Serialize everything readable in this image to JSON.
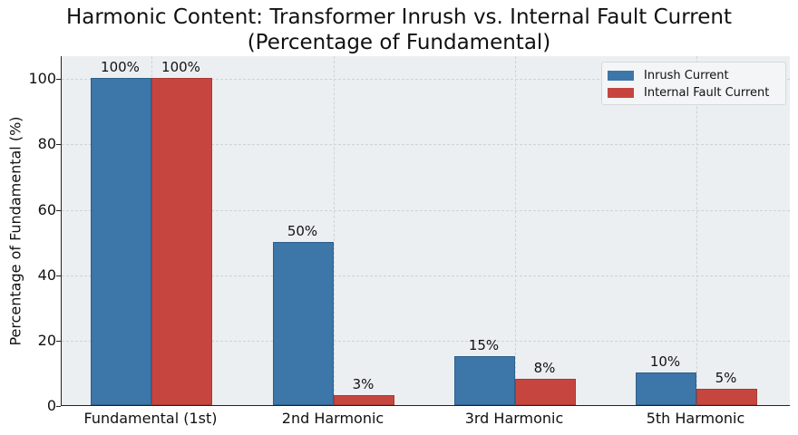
{
  "chart_data": {
    "type": "bar",
    "title": "Harmonic Content: Transformer Inrush vs. Internal Fault Current",
    "subtitle": "(Percentage of Fundamental)",
    "xlabel": "",
    "ylabel": "Percentage of Fundamental (%)",
    "ylim": [
      0,
      107
    ],
    "yticks": [
      0,
      20,
      40,
      60,
      80,
      100
    ],
    "grid": true,
    "legend_position": "upper right",
    "categories": [
      "Fundamental (1st)",
      "2nd Harmonic",
      "3rd Harmonic",
      "5th Harmonic"
    ],
    "series": [
      {
        "name": "Inrush Current",
        "color": "#3d76a8",
        "values": [
          100,
          50,
          15,
          10
        ],
        "labels": [
          "100%",
          "50%",
          "15%",
          "10%"
        ]
      },
      {
        "name": "Internal Fault Current",
        "color": "#c6463f",
        "values": [
          100,
          3,
          8,
          5
        ],
        "labels": [
          "100%",
          "3%",
          "8%",
          "5%"
        ]
      }
    ]
  }
}
